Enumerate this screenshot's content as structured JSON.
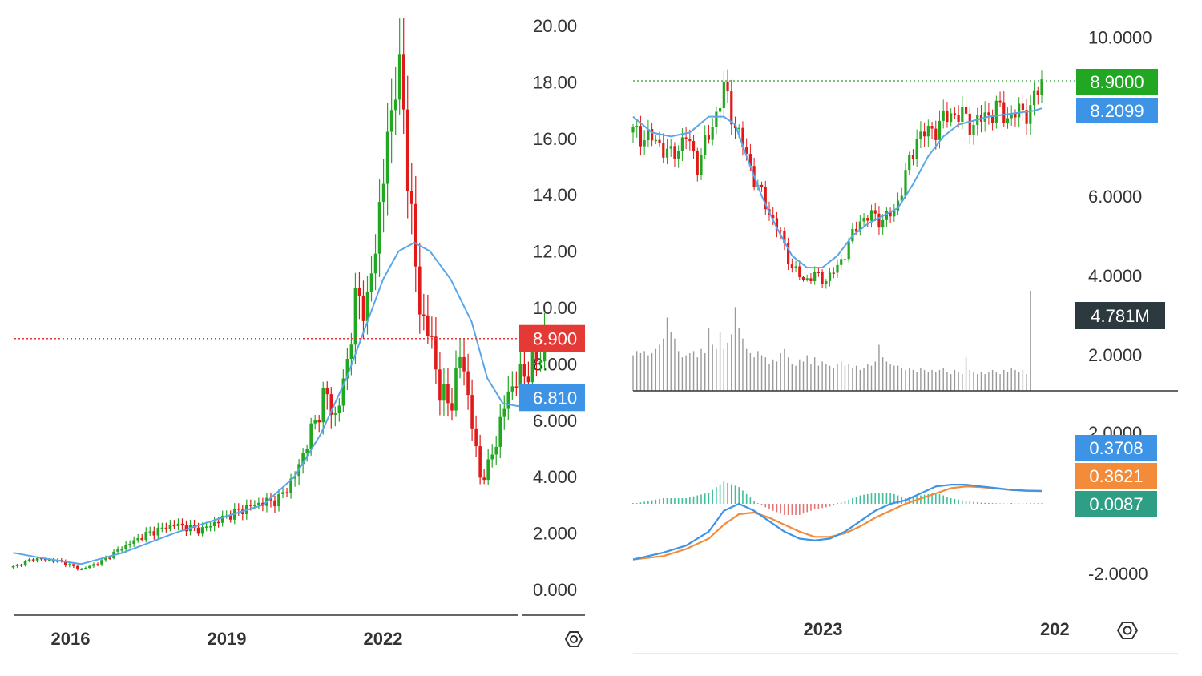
{
  "colors": {
    "up": "#22a722",
    "down": "#e01919",
    "ma": "#5aa6e8",
    "macd_dif": "#3d94e6",
    "macd_dea": "#f28c3a",
    "hist_up": "#3fbf9a",
    "hist_down": "#e57373",
    "volume": "#9a9a9a",
    "price_line_left": "#e53935",
    "price_line_right": "#4caf50"
  },
  "chart_data": [
    {
      "type": "candlestick",
      "panel": "left-monthly",
      "x_labels": [
        "2016",
        "2019",
        "2022"
      ],
      "y_ticks": [
        "20.00",
        "18.00",
        "16.00",
        "14.00",
        "12.00",
        "10.00",
        "8.000",
        "6.000",
        "4.000",
        "2.000",
        "0.000"
      ],
      "ylim": [
        0,
        20
      ],
      "last_price": 8.9,
      "badges": [
        {
          "label": "8.900",
          "color": "#e53935",
          "value": 8.9
        },
        {
          "label": "6.810",
          "color": "#3d94e6",
          "value": 6.81
        }
      ],
      "price_path": [
        [
          2014.9,
          0.8
        ],
        [
          2015.3,
          1.1
        ],
        [
          2015.8,
          1.0
        ],
        [
          2016.2,
          0.7
        ],
        [
          2016.6,
          1.0
        ],
        [
          2017.0,
          1.5
        ],
        [
          2017.5,
          2.0
        ],
        [
          2018.0,
          2.3
        ],
        [
          2018.5,
          2.1
        ],
        [
          2019.0,
          2.6
        ],
        [
          2019.5,
          3.0
        ],
        [
          2020.0,
          3.2
        ],
        [
          2020.3,
          4.0
        ],
        [
          2020.6,
          5.5
        ],
        [
          2020.9,
          7.0
        ],
        [
          2021.1,
          6.0
        ],
        [
          2021.3,
          8.0
        ],
        [
          2021.5,
          10.5
        ],
        [
          2021.7,
          10.0
        ],
        [
          2021.9,
          13.0
        ],
        [
          2022.1,
          16.0
        ],
        [
          2022.25,
          18.5
        ],
        [
          2022.4,
          17.0
        ],
        [
          2022.55,
          13.0
        ],
        [
          2022.7,
          10.0
        ],
        [
          2022.9,
          9.0
        ],
        [
          2023.1,
          7.0
        ],
        [
          2023.3,
          6.5
        ],
        [
          2023.5,
          8.5
        ],
        [
          2023.7,
          6.0
        ],
        [
          2023.85,
          4.0
        ],
        [
          2024.0,
          4.2
        ],
        [
          2024.2,
          5.5
        ],
        [
          2024.4,
          7.0
        ],
        [
          2024.6,
          7.5
        ],
        [
          2024.8,
          7.8
        ],
        [
          2025.0,
          8.3
        ],
        [
          2025.1,
          8.9
        ]
      ],
      "ma_path": [
        [
          2014.9,
          1.3
        ],
        [
          2015.5,
          1.1
        ],
        [
          2016.2,
          0.9
        ],
        [
          2017.0,
          1.3
        ],
        [
          2018.0,
          2.0
        ],
        [
          2019.0,
          2.6
        ],
        [
          2019.7,
          3.0
        ],
        [
          2020.3,
          4.0
        ],
        [
          2020.8,
          5.5
        ],
        [
          2021.3,
          7.5
        ],
        [
          2021.7,
          9.5
        ],
        [
          2022.0,
          11.0
        ],
        [
          2022.3,
          12.0
        ],
        [
          2022.6,
          12.3
        ],
        [
          2022.9,
          12.0
        ],
        [
          2023.3,
          11.0
        ],
        [
          2023.7,
          9.5
        ],
        [
          2024.0,
          7.5
        ],
        [
          2024.3,
          6.6
        ],
        [
          2024.6,
          6.5
        ],
        [
          2024.8,
          6.7
        ],
        [
          2025.0,
          6.81
        ]
      ]
    },
    {
      "type": "candlestick",
      "panel": "right-weekly",
      "x_labels": [
        "2023",
        "202"
      ],
      "y_ticks": [
        "10.0000",
        "6.0000",
        "4.0000",
        "2.0000"
      ],
      "ylim": [
        1.5,
        10
      ],
      "last_price": 8.9,
      "badges": [
        {
          "label": "8.9000",
          "color": "#22a722",
          "value": 8.9
        },
        {
          "label": "8.2099",
          "color": "#3d94e6",
          "value": 8.2099
        }
      ],
      "price_path": [
        [
          0,
          7.6
        ],
        [
          6,
          7.4
        ],
        [
          10,
          7.0
        ],
        [
          14,
          7.5
        ],
        [
          17,
          6.8
        ],
        [
          20,
          7.5
        ],
        [
          24,
          8.7
        ],
        [
          27,
          7.8
        ],
        [
          30,
          7.0
        ],
        [
          33,
          6.2
        ],
        [
          36,
          5.6
        ],
        [
          39,
          5.0
        ],
        [
          42,
          4.2
        ],
        [
          45,
          3.9
        ],
        [
          48,
          4.0
        ],
        [
          51,
          3.9
        ],
        [
          54,
          4.2
        ],
        [
          57,
          4.8
        ],
        [
          60,
          5.4
        ],
        [
          63,
          5.5
        ],
        [
          66,
          5.4
        ],
        [
          69,
          5.6
        ],
        [
          72,
          6.5
        ],
        [
          75,
          7.5
        ],
        [
          78,
          7.6
        ],
        [
          81,
          7.8
        ],
        [
          84,
          8.1
        ],
        [
          87,
          8.0
        ],
        [
          90,
          7.8
        ],
        [
          93,
          8.0
        ],
        [
          96,
          8.2
        ],
        [
          99,
          8.0
        ],
        [
          102,
          8.1
        ],
        [
          105,
          8.2
        ],
        [
          108,
          8.9
        ]
      ],
      "ma_path": [
        [
          0,
          8.0
        ],
        [
          5,
          7.6
        ],
        [
          10,
          7.5
        ],
        [
          15,
          7.6
        ],
        [
          20,
          8.0
        ],
        [
          24,
          8.0
        ],
        [
          27,
          7.8
        ],
        [
          30,
          7.0
        ],
        [
          34,
          6.0
        ],
        [
          38,
          5.2
        ],
        [
          42,
          4.5
        ],
        [
          46,
          4.2
        ],
        [
          50,
          4.2
        ],
        [
          54,
          4.5
        ],
        [
          58,
          5.0
        ],
        [
          62,
          5.3
        ],
        [
          66,
          5.5
        ],
        [
          70,
          5.7
        ],
        [
          74,
          6.3
        ],
        [
          78,
          7.0
        ],
        [
          82,
          7.5
        ],
        [
          86,
          7.8
        ],
        [
          90,
          7.9
        ],
        [
          94,
          8.0
        ],
        [
          98,
          8.05
        ],
        [
          102,
          8.1
        ],
        [
          106,
          8.15
        ],
        [
          108,
          8.2099
        ]
      ],
      "volume": {
        "badge": "4.781M",
        "max": 4.781,
        "values": [
          1.7,
          1.9,
          1.8,
          1.9,
          1.7,
          1.8,
          2.0,
          2.2,
          2.5,
          3.5,
          2.8,
          2.5,
          1.9,
          1.6,
          1.7,
          1.8,
          1.9,
          1.6,
          2.0,
          1.8,
          3.0,
          2.2,
          2.0,
          2.8,
          2.0,
          2.3,
          2.7,
          4.0,
          3.0,
          2.5,
          2.0,
          1.8,
          1.6,
          1.9,
          1.7,
          1.6,
          1.3,
          1.5,
          1.4,
          1.8,
          2.0,
          1.6,
          1.3,
          1.2,
          1.5,
          1.4,
          1.7,
          1.3,
          1.6,
          1.2,
          1.4,
          1.3,
          1.2,
          1.1,
          1.3,
          1.4,
          1.2,
          1.3,
          1.1,
          1.2,
          1.0,
          1.1,
          1.3,
          1.2,
          1.4,
          2.2,
          1.6,
          1.4,
          1.3,
          1.2,
          1.2,
          1.1,
          1.0,
          1.1,
          1.0,
          0.9,
          1.1,
          1.0,
          0.9,
          1.0,
          0.9,
          1.0,
          1.1,
          0.9,
          0.8,
          1.0,
          0.9,
          0.8,
          1.6,
          1.0,
          0.9,
          0.8,
          0.9,
          0.8,
          0.9,
          1.0,
          0.9,
          0.8,
          1.0,
          0.9,
          1.1,
          1.0,
          0.9,
          1.0,
          0.8,
          4.781
        ]
      },
      "macd": {
        "y_ticks": [
          "2.0000",
          "-2.0000"
        ],
        "ylim": [
          -2.6,
          2.2
        ],
        "dif": [
          [
            0,
            -1.6
          ],
          [
            8,
            -1.4
          ],
          [
            14,
            -1.2
          ],
          [
            20,
            -0.8
          ],
          [
            24,
            -0.2
          ],
          [
            28,
            0.0
          ],
          [
            32,
            -0.2
          ],
          [
            36,
            -0.5
          ],
          [
            40,
            -0.8
          ],
          [
            44,
            -1.0
          ],
          [
            48,
            -1.05
          ],
          [
            52,
            -1.0
          ],
          [
            56,
            -0.8
          ],
          [
            60,
            -0.5
          ],
          [
            64,
            -0.2
          ],
          [
            68,
            0.0
          ],
          [
            72,
            0.1
          ],
          [
            76,
            0.3
          ],
          [
            80,
            0.5
          ],
          [
            84,
            0.55
          ],
          [
            88,
            0.55
          ],
          [
            92,
            0.5
          ],
          [
            96,
            0.45
          ],
          [
            100,
            0.4
          ],
          [
            104,
            0.38
          ],
          [
            108,
            0.3708
          ]
        ],
        "dea": [
          [
            0,
            -1.6
          ],
          [
            8,
            -1.5
          ],
          [
            14,
            -1.3
          ],
          [
            20,
            -1.0
          ],
          [
            24,
            -0.6
          ],
          [
            28,
            -0.3
          ],
          [
            32,
            -0.25
          ],
          [
            36,
            -0.4
          ],
          [
            40,
            -0.6
          ],
          [
            44,
            -0.8
          ],
          [
            48,
            -0.95
          ],
          [
            52,
            -0.95
          ],
          [
            56,
            -0.85
          ],
          [
            60,
            -0.65
          ],
          [
            64,
            -0.4
          ],
          [
            68,
            -0.2
          ],
          [
            72,
            0.0
          ],
          [
            76,
            0.15
          ],
          [
            80,
            0.3
          ],
          [
            84,
            0.45
          ],
          [
            88,
            0.5
          ],
          [
            92,
            0.48
          ],
          [
            96,
            0.44
          ],
          [
            100,
            0.4
          ],
          [
            104,
            0.37
          ],
          [
            108,
            0.3621
          ]
        ],
        "badges": [
          {
            "label": "0.3708",
            "color": "#3d94e6"
          },
          {
            "label": "0.3621",
            "color": "#f28c3a"
          },
          {
            "label": "0.0087",
            "color": "#2e9e84"
          }
        ]
      }
    }
  ]
}
